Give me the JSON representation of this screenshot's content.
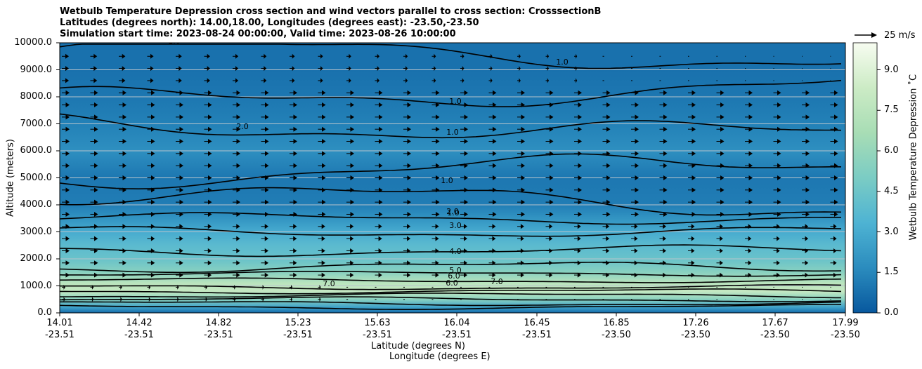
{
  "chart_data": {
    "type": "contour-cross-section",
    "title_lines": [
      "Wetbulb Temperature Depression cross section and wind vectors parallel to cross section: CrosssectionB",
      "Latitudes (degrees north): 14.00,18.00, Longitudes (degrees east): -23.50,-23.50",
      "Simulation start time: 2023-08-24 00:00:00, Valid time: 2023-08-26 10:00:00"
    ],
    "ylabel": "Altitude (meters)",
    "xlabel_lat": "Latitude (degrees N)",
    "xlabel_lon": "Longitude (degrees E)",
    "ylim": [
      0,
      10000
    ],
    "yticks": [
      "0.0",
      "1000.0",
      "2000.0",
      "3000.0",
      "4000.0",
      "5000.0",
      "6000.0",
      "7000.0",
      "8000.0",
      "9000.0",
      "10000.0"
    ],
    "xticks": [
      {
        "lat": "14.01",
        "lon": "-23.51"
      },
      {
        "lat": "14.42",
        "lon": "-23.51"
      },
      {
        "lat": "14.82",
        "lon": "-23.51"
      },
      {
        "lat": "15.23",
        "lon": "-23.51"
      },
      {
        "lat": "15.63",
        "lon": "-23.51"
      },
      {
        "lat": "16.04",
        "lon": "-23.51"
      },
      {
        "lat": "16.45",
        "lon": "-23.51"
      },
      {
        "lat": "16.85",
        "lon": "-23.50"
      },
      {
        "lat": "17.26",
        "lon": "-23.50"
      },
      {
        "lat": "17.67",
        "lon": "-23.50"
      },
      {
        "lat": "17.99",
        "lon": "-23.50"
      }
    ],
    "grid": "horizontal",
    "colorbar": {
      "label": "Wetbulb Temperature Depression ˚C",
      "range": [
        0,
        10
      ],
      "ticks": [
        "0.0",
        "1.5",
        "3.0",
        "4.5",
        "6.0",
        "7.5",
        "9.0"
      ],
      "levels": 20
    },
    "quiver_key": "25 m/s",
    "contour_labels": [
      "1.0",
      "1.0",
      "1.0",
      "1.0",
      "1.0",
      "1.0",
      "2.0",
      "2.0",
      "3.0",
      "4.0",
      "5.0",
      "6.0",
      "6.0",
      "7.0",
      "7.0"
    ],
    "profile": [
      {
        "alt": 0,
        "value": 0.6
      },
      {
        "alt": 200,
        "value": 2.5
      },
      {
        "alt": 500,
        "value": 5.5
      },
      {
        "alt": 800,
        "value": 8.0
      },
      {
        "alt": 1100,
        "value": 7.5
      },
      {
        "alt": 1500,
        "value": 5.5
      },
      {
        "alt": 2000,
        "value": 4.3
      },
      {
        "alt": 2500,
        "value": 3.8
      },
      {
        "alt": 3000,
        "value": 3.0
      },
      {
        "alt": 3500,
        "value": 2.0
      },
      {
        "alt": 4000,
        "value": 1.2
      },
      {
        "alt": 5000,
        "value": 1.0
      },
      {
        "alt": 6000,
        "value": 1.8
      },
      {
        "alt": 7000,
        "value": 1.3
      },
      {
        "alt": 8000,
        "value": 1.0
      },
      {
        "alt": 9000,
        "value": 0.8
      },
      {
        "alt": 10000,
        "value": 0.8
      }
    ],
    "colors": [
      "#08589e",
      "#2b8cbe",
      "#4eb3d3",
      "#7bccc4",
      "#a8ddb5",
      "#ccebc5",
      "#f7fcf0"
    ]
  }
}
